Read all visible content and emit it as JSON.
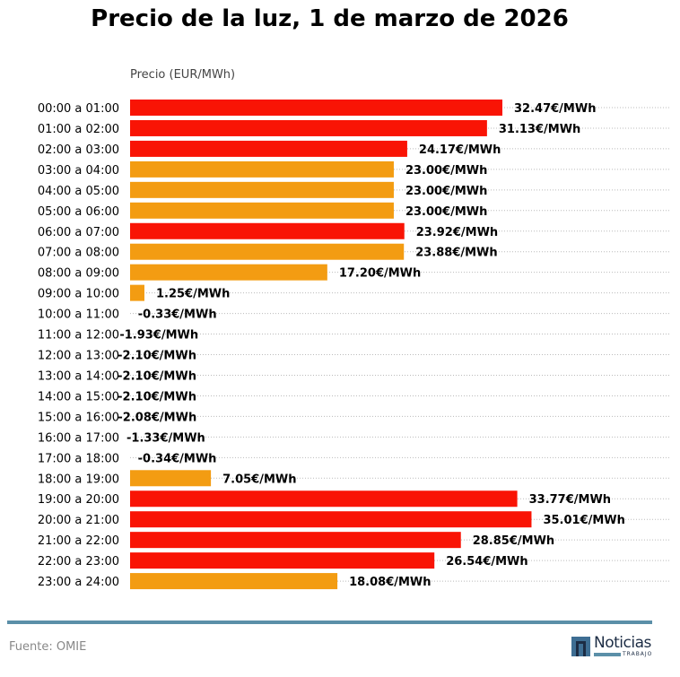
{
  "title": "Precio de la luz, 1 de marzo de 2026",
  "source": "Fuente: OMIE",
  "logo": {
    "word": "Noticias",
    "sub": "TRABAJO"
  },
  "colors": {
    "high": "#f91405",
    "mid": "#f39c12",
    "rule": "#5b8fa8"
  },
  "chart_data": {
    "type": "bar",
    "orientation": "horizontal",
    "title": "Precio de la luz, 1 de marzo de 2026",
    "xlabel": "Precio (EUR/MWh)",
    "grid": "horizontal dotted",
    "categories": [
      "00:00 a 01:00",
      "01:00 a 02:00",
      "02:00 a 03:00",
      "03:00 a 04:00",
      "04:00 a 05:00",
      "05:00 a 06:00",
      "06:00 a 07:00",
      "07:00 a 08:00",
      "08:00 a 09:00",
      "09:00 a 10:00",
      "10:00 a 11:00",
      "11:00 a 12:00",
      "12:00 a 13:00",
      "13:00 a 14:00",
      "14:00 a 15:00",
      "15:00 a 16:00",
      "16:00 a 17:00",
      "17:00 a 18:00",
      "18:00 a 19:00",
      "19:00 a 20:00",
      "20:00 a 21:00",
      "21:00 a 22:00",
      "22:00 a 23:00",
      "23:00 a 24:00"
    ],
    "values": [
      32.47,
      31.13,
      24.17,
      23.0,
      23.0,
      23.0,
      23.92,
      23.88,
      17.2,
      1.25,
      -0.33,
      -1.93,
      -2.1,
      -2.1,
      -2.1,
      -2.08,
      -1.33,
      -0.34,
      7.05,
      33.77,
      35.01,
      28.85,
      26.54,
      18.08
    ],
    "labels": [
      "32.47€/MWh",
      "31.13€/MWh",
      "24.17€/MWh",
      "23.00€/MWh",
      "23.00€/MWh",
      "23.00€/MWh",
      "23.92€/MWh",
      "23.88€/MWh",
      "17.20€/MWh",
      "1.25€/MWh",
      "-0.33€/MWh",
      "-1.93€/MWh",
      "-2.10€/MWh",
      "-2.10€/MWh",
      "-2.10€/MWh",
      "-2.08€/MWh",
      "-1.33€/MWh",
      "-0.34€/MWh",
      "7.05€/MWh",
      "33.77€/MWh",
      "35.01€/MWh",
      "28.85€/MWh",
      "26.54€/MWh",
      "18.08€/MWh"
    ],
    "bar_colors": [
      "#f91405",
      "#f91405",
      "#f91405",
      "#f39c12",
      "#f39c12",
      "#f39c12",
      "#f91405",
      "#f39c12",
      "#f39c12",
      "#f39c12",
      "#f39c12",
      "#f39c12",
      "#f39c12",
      "#f39c12",
      "#f39c12",
      "#f39c12",
      "#f39c12",
      "#f39c12",
      "#f39c12",
      "#f91405",
      "#f91405",
      "#f91405",
      "#f91405",
      "#f39c12"
    ]
  }
}
